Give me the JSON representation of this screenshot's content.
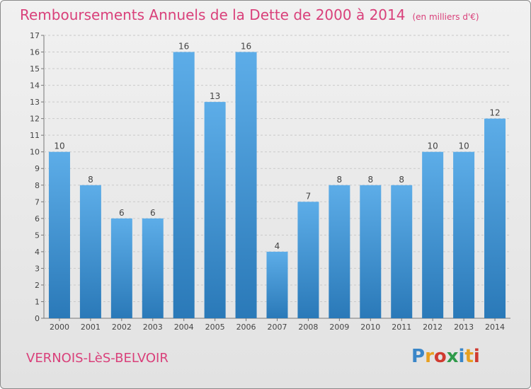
{
  "header": {
    "title": "Remboursements Annuels de la Dette de 2000 à 2014",
    "unit": "(en milliers d'€)"
  },
  "footer": {
    "entity": "VERNOIS-LèS-BELVOIR",
    "logo_letters": [
      "P",
      "r",
      "o",
      "x",
      "i",
      "t",
      "i"
    ],
    "logo_colors": [
      "#3a86c8",
      "#e8a020",
      "#d03a30",
      "#2f9a4a",
      "#3a86c8",
      "#e8a020",
      "#d03a30"
    ]
  },
  "chart_data": {
    "type": "bar",
    "categories": [
      "2000",
      "2001",
      "2002",
      "2003",
      "2004",
      "2005",
      "2006",
      "2007",
      "2008",
      "2009",
      "2010",
      "2011",
      "2012",
      "2013",
      "2014"
    ],
    "values": [
      10,
      8,
      6,
      6,
      16,
      13,
      16,
      4,
      7,
      8,
      8,
      8,
      10,
      10,
      12
    ],
    "title": "Remboursements Annuels de la Dette de 2000 à 2014",
    "ylim": [
      0,
      17
    ],
    "yticks": [
      0,
      1,
      2,
      3,
      4,
      5,
      6,
      7,
      8,
      9,
      10,
      11,
      12,
      13,
      14,
      15,
      16,
      17
    ],
    "grid": true,
    "bar_color_top": "#5dade8",
    "bar_color_bottom": "#2a79b8",
    "title_color": "#d9407a"
  }
}
